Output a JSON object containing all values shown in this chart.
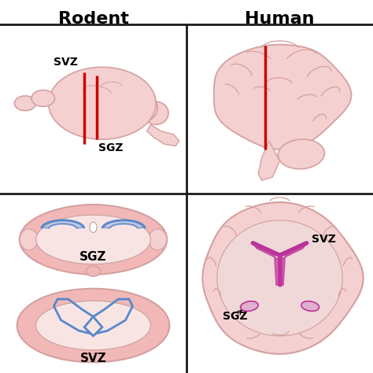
{
  "title_rodent": "Rodent",
  "title_human": "Human",
  "bg_color": "#ffffff",
  "grid_line_color": "#1a1a1a",
  "pink_outer": "#f2b8b8",
  "pink_light": "#f5d0d0",
  "pink_inner": "#e8c0c0",
  "pink_mid": "#d4a0a0",
  "pink_dark": "#c08080",
  "pink_fill": "#f9e4e4",
  "red_line": "#cc0000",
  "blue_line": "#5588cc",
  "blue_fill": "#aabbdd",
  "magenta_line": "#bb3399",
  "magenta_fill": "#cc44aa",
  "white_str": "#ffffff",
  "label_svz": "SVZ",
  "label_sgz": "SGZ",
  "title_fontsize": 16,
  "label_fontsize": 10
}
